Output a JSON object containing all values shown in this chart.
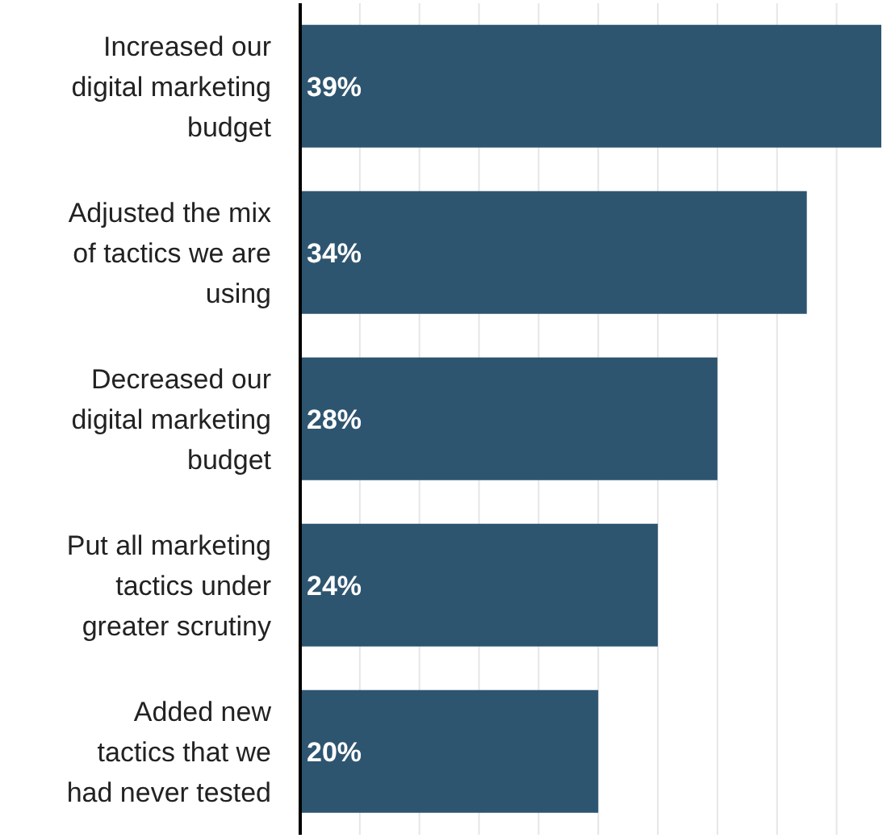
{
  "chart_data": {
    "type": "bar",
    "orientation": "horizontal",
    "categories": [
      "Increased our digital marketing budget",
      "Adjusted the mix of tactics we are using",
      "Decreased our digital marketing budget",
      "Put all marketing tactics under greater scrutiny",
      "Added new tactics that we had never tested"
    ],
    "values": [
      39,
      34,
      28,
      24,
      20
    ],
    "value_labels": [
      "39%",
      "34%",
      "28%",
      "24%",
      "20%"
    ],
    "color": "#2e5570",
    "xlim": [
      0,
      39
    ],
    "xticks": [
      {
        "value": 0,
        "label": null
      },
      {
        "value": 4,
        "label": null
      },
      {
        "value": 8,
        "label": null
      },
      {
        "value": 12,
        "label": null
      },
      {
        "value": 16,
        "label": null
      },
      {
        "value": 20,
        "label": null
      },
      {
        "value": 24,
        "label": null
      },
      {
        "value": 28,
        "label": null
      },
      {
        "value": 32,
        "label": null
      },
      {
        "value": 36,
        "label": null
      }
    ],
    "grid": "x",
    "tick_labels": "y"
  }
}
